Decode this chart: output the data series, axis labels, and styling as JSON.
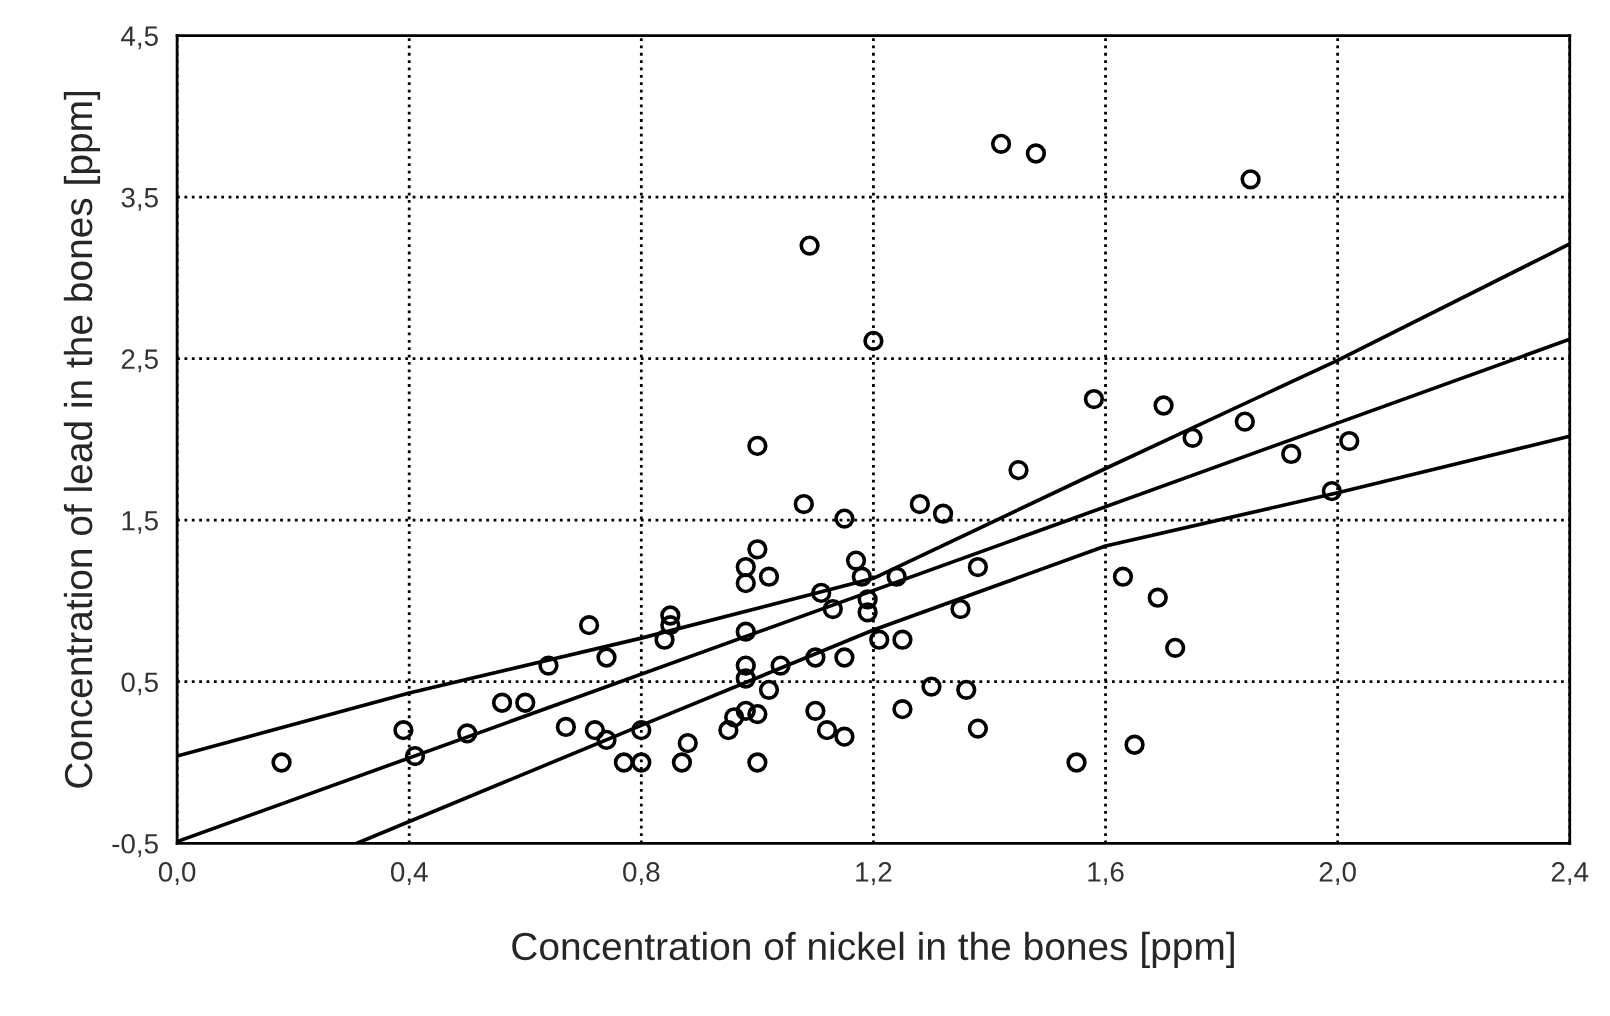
{
  "chart_data": {
    "type": "scatter",
    "xlabel": "Concentration of nickel in the bones [ppm]",
    "ylabel": "Concentration of lead in the bones [ppm]",
    "xlim": [
      0.0,
      2.4
    ],
    "ylim": [
      -0.5,
      4.5
    ],
    "xticks": [
      {
        "value": 0.0,
        "label": "0,0"
      },
      {
        "value": 0.4,
        "label": "0,4"
      },
      {
        "value": 0.8,
        "label": "0,8"
      },
      {
        "value": 1.2,
        "label": "1,2"
      },
      {
        "value": 1.6,
        "label": "1,6"
      },
      {
        "value": 2.0,
        "label": "2,0"
      },
      {
        "value": 2.4,
        "label": "2,4"
      }
    ],
    "yticks": [
      {
        "value": -0.5,
        "label": "-0,5"
      },
      {
        "value": 0.5,
        "label": "0,5"
      },
      {
        "value": 1.5,
        "label": "1,5"
      },
      {
        "value": 2.5,
        "label": "2,5"
      },
      {
        "value": 3.5,
        "label": "3,5"
      },
      {
        "value": 4.5,
        "label": "4,5"
      }
    ],
    "grid": true,
    "series": [
      {
        "color": "#000000",
        "marker": "circle",
        "x": [
          0.18,
          0.39,
          0.41,
          0.5,
          0.56,
          0.6,
          0.64,
          0.67,
          0.71,
          0.72,
          0.74,
          0.74,
          0.77,
          0.8,
          0.8,
          0.84,
          0.85,
          0.85,
          0.87,
          0.88,
          0.95,
          0.96,
          0.98,
          0.98,
          0.98,
          0.98,
          0.98,
          0.98,
          1.0,
          1.0,
          1.0,
          1.0,
          1.02,
          1.02,
          1.04,
          1.08,
          1.09,
          1.1,
          1.1,
          1.11,
          1.12,
          1.13,
          1.15,
          1.15,
          1.15,
          1.17,
          1.18,
          1.19,
          1.19,
          1.2,
          1.21,
          1.24,
          1.25,
          1.25,
          1.28,
          1.3,
          1.32,
          1.35,
          1.36,
          1.38,
          1.38,
          1.42,
          1.45,
          1.48,
          1.55,
          1.58,
          1.63,
          1.65,
          1.69,
          1.7,
          1.72,
          1.75,
          1.84,
          1.85,
          1.92,
          1.99,
          2.02
        ],
        "values": [
          0.0,
          0.2,
          0.04,
          0.18,
          0.37,
          0.37,
          0.6,
          0.22,
          0.85,
          0.2,
          0.65,
          0.14,
          0.0,
          0.2,
          0.0,
          0.76,
          0.85,
          0.91,
          0.0,
          0.12,
          0.2,
          0.28,
          1.21,
          1.11,
          0.81,
          0.6,
          0.52,
          0.32,
          1.96,
          1.32,
          0.3,
          0.0,
          1.15,
          0.45,
          0.6,
          1.6,
          3.2,
          0.65,
          0.32,
          1.05,
          0.2,
          0.95,
          1.51,
          0.65,
          0.16,
          1.25,
          1.15,
          1.01,
          0.93,
          2.61,
          0.76,
          1.15,
          0.76,
          0.33,
          1.6,
          0.47,
          1.54,
          0.95,
          0.45,
          1.21,
          0.21,
          3.83,
          1.81,
          3.77,
          0.0,
          2.25,
          1.15,
          0.11,
          1.02,
          2.21,
          0.71,
          2.01,
          2.11,
          3.61,
          1.91,
          1.68,
          1.99
        ]
      },
      {
        "type": "line",
        "color": "#000000",
        "marker": "none",
        "line_style": "solid",
        "x": [
          0.0,
          2.4
        ],
        "values": [
          -0.49,
          2.62
        ]
      },
      {
        "type": "line",
        "color": "#000000",
        "marker": "none",
        "line_style": "solid",
        "x": [
          0.0,
          0.4,
          0.8,
          1.2,
          1.6,
          2.0,
          2.4
        ],
        "values": [
          0.04,
          0.43,
          0.77,
          1.14,
          1.82,
          2.49,
          3.21
        ]
      },
      {
        "type": "line",
        "color": "#000000",
        "marker": "none",
        "line_style": "solid",
        "x": [
          0.31,
          0.8,
          1.2,
          1.6,
          2.0,
          2.4
        ],
        "values": [
          -0.5,
          0.23,
          0.82,
          1.34,
          1.67,
          2.02
        ]
      }
    ]
  }
}
